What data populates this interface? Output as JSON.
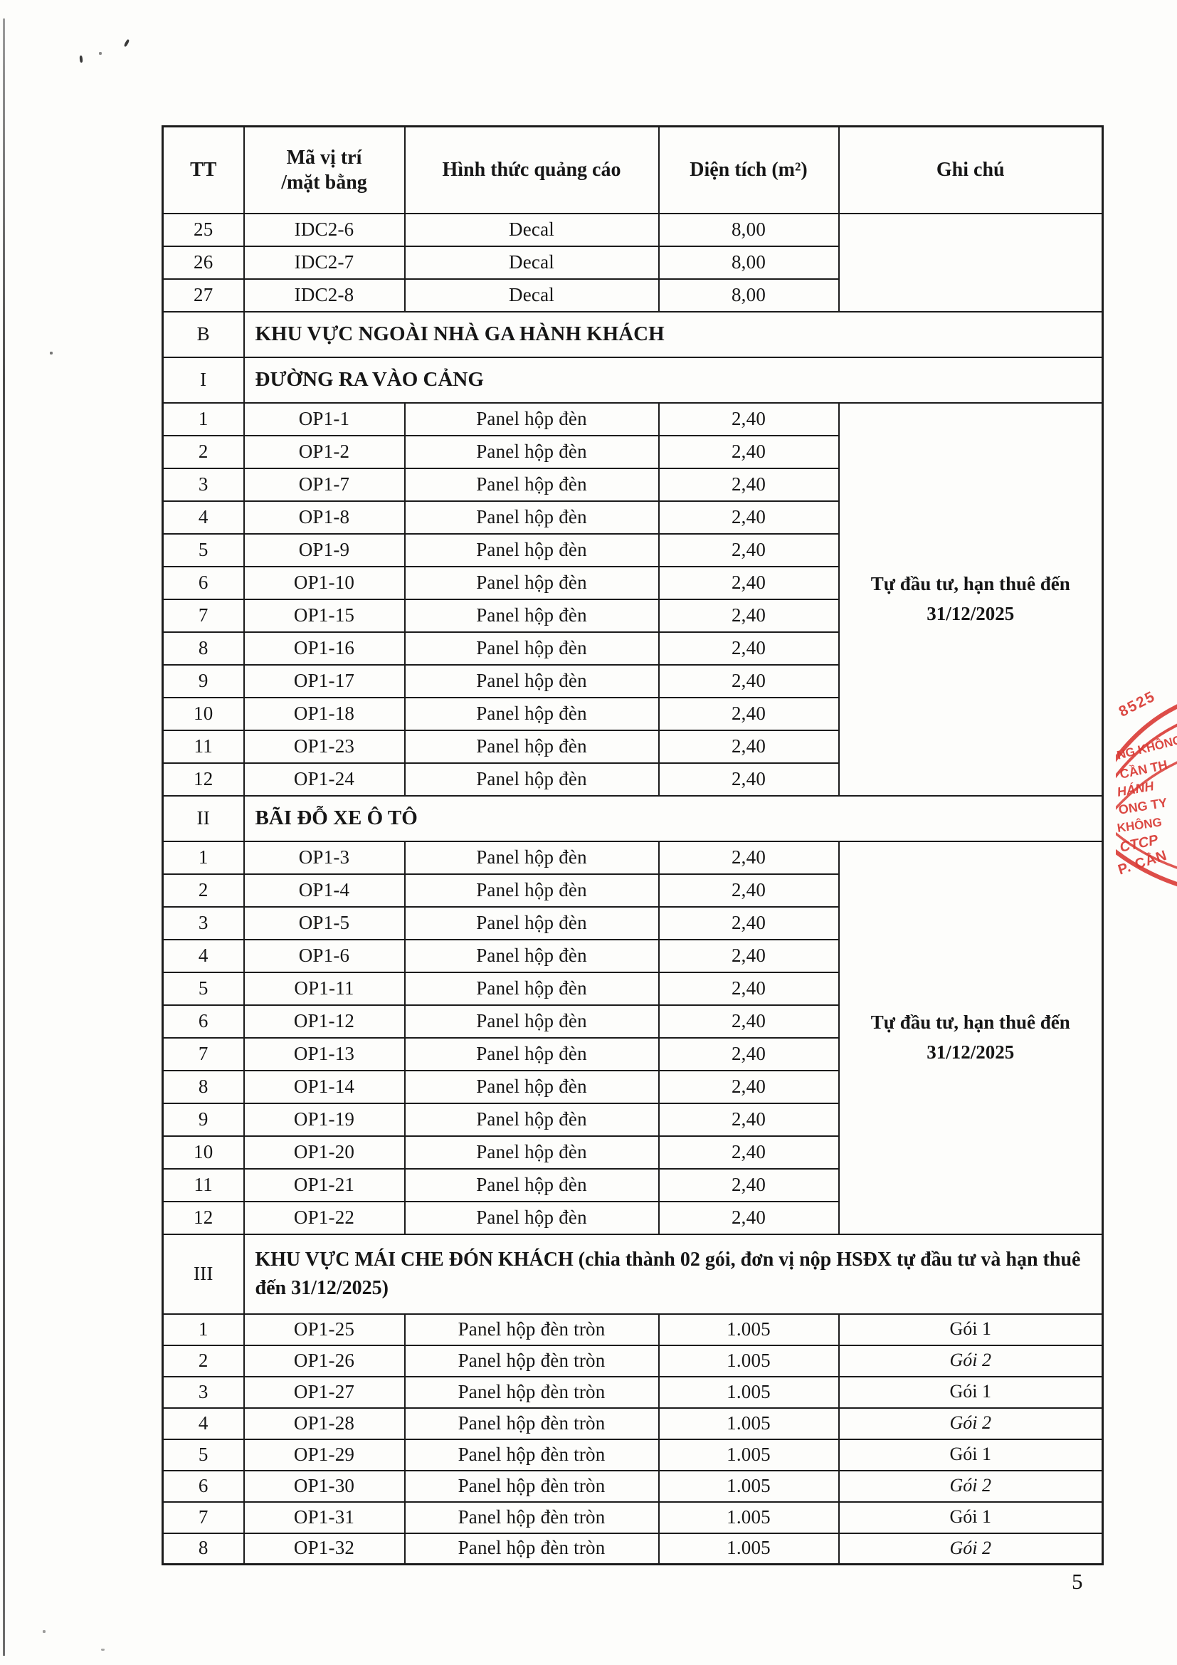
{
  "page": {
    "number": "5"
  },
  "table": {
    "headers": [
      "TT",
      "Mã vị trí\n/mặt bằng",
      "Hình thức quảng cáo",
      "Diện tích (m²)",
      "Ghi chú"
    ],
    "top_rows": [
      {
        "tt": "25",
        "code": "IDC2-6",
        "form": "Decal",
        "area": "8,00"
      },
      {
        "tt": "26",
        "code": "IDC2-7",
        "form": "Decal",
        "area": "8,00"
      },
      {
        "tt": "27",
        "code": "IDC2-8",
        "form": "Decal",
        "area": "8,00"
      }
    ],
    "sections": [
      {
        "tt": "B",
        "title": "KHU VỰC NGOÀI NHÀ GA HÀNH KHÁCH",
        "rows": []
      },
      {
        "tt": "I",
        "title": "ĐƯỜNG RA VÀO CẢNG",
        "note": "Tự đầu tư, hạn thuê đến 31/12/2025",
        "rows": [
          {
            "tt": "1",
            "code": "OP1-1",
            "form": "Panel hộp đèn",
            "area": "2,40"
          },
          {
            "tt": "2",
            "code": "OP1-2",
            "form": "Panel hộp đèn",
            "area": "2,40"
          },
          {
            "tt": "3",
            "code": "OP1-7",
            "form": "Panel hộp đèn",
            "area": "2,40"
          },
          {
            "tt": "4",
            "code": "OP1-8",
            "form": "Panel hộp đèn",
            "area": "2,40"
          },
          {
            "tt": "5",
            "code": "OP1-9",
            "form": "Panel hộp đèn",
            "area": "2,40"
          },
          {
            "tt": "6",
            "code": "OP1-10",
            "form": "Panel hộp đèn",
            "area": "2,40"
          },
          {
            "tt": "7",
            "code": "OP1-15",
            "form": "Panel hộp đèn",
            "area": "2,40"
          },
          {
            "tt": "8",
            "code": "OP1-16",
            "form": "Panel hộp đèn",
            "area": "2,40"
          },
          {
            "tt": "9",
            "code": "OP1-17",
            "form": "Panel hộp đèn",
            "area": "2,40"
          },
          {
            "tt": "10",
            "code": "OP1-18",
            "form": "Panel hộp đèn",
            "area": "2,40"
          },
          {
            "tt": "11",
            "code": "OP1-23",
            "form": "Panel hộp đèn",
            "area": "2,40"
          },
          {
            "tt": "12",
            "code": "OP1-24",
            "form": "Panel hộp đèn",
            "area": "2,40"
          }
        ]
      },
      {
        "tt": "II",
        "title": "BÃI ĐỖ XE Ô TÔ",
        "note": "Tự đầu tư, hạn thuê đến 31/12/2025",
        "rows": [
          {
            "tt": "1",
            "code": "OP1-3",
            "form": "Panel hộp đèn",
            "area": "2,40"
          },
          {
            "tt": "2",
            "code": "OP1-4",
            "form": "Panel hộp đèn",
            "area": "2,40"
          },
          {
            "tt": "3",
            "code": "OP1-5",
            "form": "Panel hộp đèn",
            "area": "2,40"
          },
          {
            "tt": "4",
            "code": "OP1-6",
            "form": "Panel hộp đèn",
            "area": "2,40"
          },
          {
            "tt": "5",
            "code": "OP1-11",
            "form": "Panel hộp đèn",
            "area": "2,40"
          },
          {
            "tt": "6",
            "code": "OP1-12",
            "form": "Panel hộp đèn",
            "area": "2,40"
          },
          {
            "tt": "7",
            "code": "OP1-13",
            "form": "Panel hộp đèn",
            "area": "2,40"
          },
          {
            "tt": "8",
            "code": "OP1-14",
            "form": "Panel hộp đèn",
            "area": "2,40"
          },
          {
            "tt": "9",
            "code": "OP1-19",
            "form": "Panel hộp đèn",
            "area": "2,40"
          },
          {
            "tt": "10",
            "code": "OP1-20",
            "form": "Panel hộp đèn",
            "area": "2,40"
          },
          {
            "tt": "11",
            "code": "OP1-21",
            "form": "Panel hộp đèn",
            "area": "2,40"
          },
          {
            "tt": "12",
            "code": "OP1-22",
            "form": "Panel hộp đèn",
            "area": "2,40"
          }
        ]
      },
      {
        "tt": "III",
        "title": "KHU VỰC MÁI CHE ĐÓN KHÁCH (chia thành 02 gói, đơn vị nộp HSĐX tự đầu tư và hạn thuê đến 31/12/2025)",
        "tall": true,
        "rows": [
          {
            "tt": "1",
            "code": "OP1-25",
            "form": "Panel hộp đèn tròn",
            "area": "1.005",
            "note": "Gói 1"
          },
          {
            "tt": "2",
            "code": "OP1-26",
            "form": "Panel hộp đèn tròn",
            "area": "1.005",
            "note": "Gói 2",
            "italic": true
          },
          {
            "tt": "3",
            "code": "OP1-27",
            "form": "Panel hộp đèn tròn",
            "area": "1.005",
            "note": "Gói 1"
          },
          {
            "tt": "4",
            "code": "OP1-28",
            "form": "Panel hộp đèn tròn",
            "area": "1.005",
            "note": "Gói 2",
            "italic": true
          },
          {
            "tt": "5",
            "code": "OP1-29",
            "form": "Panel hộp đèn tròn",
            "area": "1.005",
            "note": "Gói 1"
          },
          {
            "tt": "6",
            "code": "OP1-30",
            "form": "Panel hộp đèn tròn",
            "area": "1.005",
            "note": "Gói 2",
            "italic": true
          },
          {
            "tt": "7",
            "code": "OP1-31",
            "form": "Panel hộp đèn tròn",
            "area": "1.005",
            "note": "Gói 1"
          },
          {
            "tt": "8",
            "code": "OP1-32",
            "form": "Panel hộp đèn tròn",
            "area": "1.005",
            "note": "Gói 2",
            "italic": true
          }
        ]
      }
    ]
  },
  "stamp": {
    "color": "#d93a34",
    "lines": [
      "8525",
      "NG KHÔNG",
      "CẦN TH",
      "HÁNH",
      "ONG TY",
      "KHÔNG",
      "CTCP",
      "P. CẦN"
    ]
  }
}
